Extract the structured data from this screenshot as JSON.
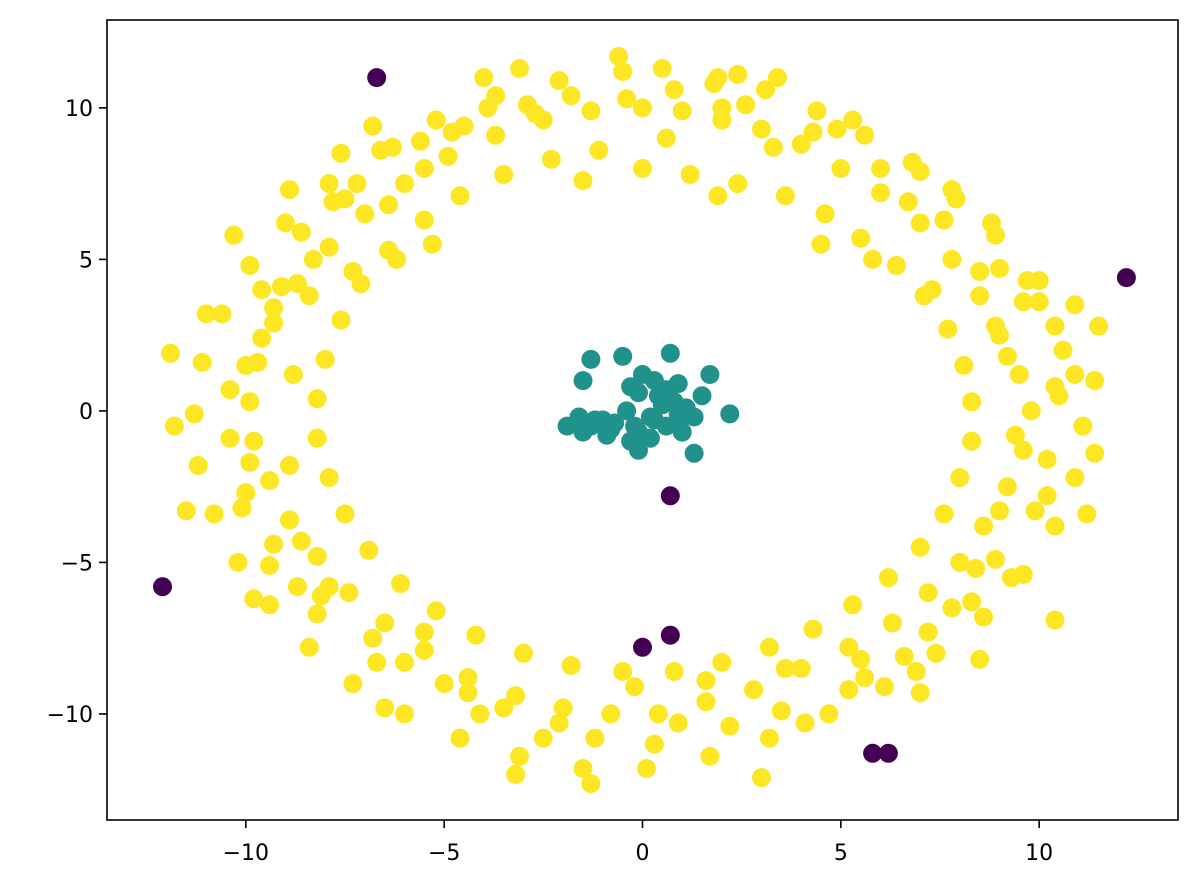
{
  "chart_data": {
    "type": "scatter",
    "title": "",
    "xlabel": "",
    "ylabel": "",
    "xlim": [
      -13.5,
      13.5
    ],
    "ylim": [
      -13.5,
      12.9
    ],
    "grid": false,
    "xticks": [
      -10,
      -5,
      0,
      5,
      10
    ],
    "yticks": [
      -10,
      -5,
      0,
      5,
      10
    ],
    "xtick_labels": [
      "−10",
      "−5",
      "0",
      "5",
      "10"
    ],
    "ytick_labels": [
      "−10",
      "−5",
      "0",
      "5",
      "10"
    ],
    "colors": {
      "outlier": "#440154",
      "center": "#21918c",
      "ring": "#fde725"
    },
    "series": [
      {
        "key": "outlier",
        "points": [
          [
            -6.7,
            11.0
          ],
          [
            12.2,
            4.4
          ],
          [
            -12.1,
            -5.8
          ],
          [
            0.7,
            -2.8
          ],
          [
            0.0,
            -7.8
          ],
          [
            0.7,
            -7.4
          ],
          [
            5.8,
            -11.3
          ],
          [
            6.2,
            -11.3
          ]
        ]
      },
      {
        "key": "center",
        "points": [
          [
            -1.3,
            1.7
          ],
          [
            -0.5,
            1.8
          ],
          [
            0.7,
            1.9
          ],
          [
            1.7,
            1.2
          ],
          [
            -1.5,
            1.0
          ],
          [
            0.0,
            1.2
          ],
          [
            0.3,
            1.0
          ],
          [
            -0.3,
            0.8
          ],
          [
            0.9,
            0.9
          ],
          [
            1.5,
            0.5
          ],
          [
            -0.1,
            0.6
          ],
          [
            0.4,
            0.5
          ],
          [
            0.8,
            0.3
          ],
          [
            2.2,
            -0.1
          ],
          [
            -1.2,
            -0.3
          ],
          [
            -0.7,
            -0.4
          ],
          [
            -0.2,
            -0.5
          ],
          [
            0.3,
            -0.3
          ],
          [
            0.9,
            -0.4
          ],
          [
            1.3,
            -0.2
          ],
          [
            -1.9,
            -0.5
          ],
          [
            -1.5,
            -0.7
          ],
          [
            -0.9,
            -0.8
          ],
          [
            -0.1,
            -0.7
          ],
          [
            0.6,
            -0.5
          ],
          [
            1.0,
            -0.7
          ],
          [
            -1.6,
            -0.2
          ],
          [
            -0.1,
            -1.3
          ],
          [
            1.3,
            -1.4
          ],
          [
            0.2,
            -0.2
          ],
          [
            -0.4,
            0.0
          ],
          [
            1.1,
            0.1
          ],
          [
            0.6,
            0.7
          ],
          [
            -1.0,
            -0.3
          ],
          [
            0.2,
            -0.9
          ],
          [
            -1.3,
            -0.5
          ],
          [
            0.5,
            0.2
          ],
          [
            -0.3,
            -1.0
          ],
          [
            0.9,
            -0.1
          ],
          [
            -0.8,
            -0.6
          ]
        ]
      },
      {
        "key": "ring",
        "points": [
          [
            0.0,
            10.0
          ],
          [
            1.0,
            9.9
          ],
          [
            2.0,
            9.6
          ],
          [
            3.0,
            9.3
          ],
          [
            4.0,
            8.8
          ],
          [
            5.0,
            8.0
          ],
          [
            6.0,
            7.2
          ],
          [
            7.0,
            6.2
          ],
          [
            7.8,
            5.0
          ],
          [
            8.5,
            3.8
          ],
          [
            9.0,
            2.5
          ],
          [
            9.5,
            1.2
          ],
          [
            9.8,
            0.0
          ],
          [
            9.6,
            -1.3
          ],
          [
            9.2,
            -2.5
          ],
          [
            8.6,
            -3.8
          ],
          [
            8.0,
            -5.0
          ],
          [
            7.2,
            -6.0
          ],
          [
            6.3,
            -7.0
          ],
          [
            5.2,
            -7.8
          ],
          [
            4.0,
            -8.5
          ],
          [
            2.8,
            -9.2
          ],
          [
            1.6,
            -9.6
          ],
          [
            0.4,
            -10.0
          ],
          [
            -0.8,
            -10.0
          ],
          [
            -2.0,
            -9.8
          ],
          [
            -3.2,
            -9.4
          ],
          [
            -4.4,
            -8.8
          ],
          [
            -5.5,
            -7.9
          ],
          [
            -6.5,
            -7.0
          ],
          [
            -7.4,
            -6.0
          ],
          [
            -8.2,
            -4.8
          ],
          [
            -8.9,
            -3.6
          ],
          [
            -9.4,
            -2.3
          ],
          [
            -9.8,
            -1.0
          ],
          [
            -9.9,
            0.3
          ],
          [
            -9.7,
            1.6
          ],
          [
            -9.3,
            2.9
          ],
          [
            -8.7,
            4.2
          ],
          [
            -7.9,
            5.4
          ],
          [
            -7.0,
            6.5
          ],
          [
            -6.0,
            7.5
          ],
          [
            -4.9,
            8.4
          ],
          [
            -3.7,
            9.1
          ],
          [
            -2.5,
            9.6
          ],
          [
            -1.3,
            9.9
          ],
          [
            0.5,
            11.3
          ],
          [
            1.8,
            10.8
          ],
          [
            3.1,
            10.6
          ],
          [
            4.4,
            9.9
          ],
          [
            5.6,
            9.1
          ],
          [
            6.8,
            8.2
          ],
          [
            7.9,
            7.0
          ],
          [
            8.9,
            5.8
          ],
          [
            9.7,
            4.3
          ],
          [
            10.4,
            2.8
          ],
          [
            10.9,
            1.2
          ],
          [
            11.1,
            -0.5
          ],
          [
            10.9,
            -2.2
          ],
          [
            10.4,
            -3.8
          ],
          [
            9.6,
            -5.4
          ],
          [
            8.6,
            -6.8
          ],
          [
            7.4,
            -8.0
          ],
          [
            6.1,
            -9.1
          ],
          [
            4.7,
            -10.0
          ],
          [
            3.2,
            -10.8
          ],
          [
            1.7,
            -11.4
          ],
          [
            0.1,
            -11.8
          ],
          [
            -1.5,
            -11.8
          ],
          [
            -3.1,
            -11.4
          ],
          [
            -4.6,
            -10.8
          ],
          [
            -6.0,
            -10.0
          ],
          [
            -7.3,
            -9.0
          ],
          [
            -8.4,
            -7.8
          ],
          [
            -9.4,
            -6.4
          ],
          [
            -10.2,
            -5.0
          ],
          [
            -10.8,
            -3.4
          ],
          [
            -11.2,
            -1.8
          ],
          [
            -11.3,
            -0.1
          ],
          [
            -11.1,
            1.6
          ],
          [
            -10.6,
            3.2
          ],
          [
            -9.9,
            4.8
          ],
          [
            -9.0,
            6.2
          ],
          [
            -7.9,
            7.5
          ],
          [
            -6.6,
            8.6
          ],
          [
            -5.2,
            9.6
          ],
          [
            -3.7,
            10.4
          ],
          [
            -2.1,
            10.9
          ],
          [
            -0.5,
            11.2
          ],
          [
            2.4,
            11.1
          ],
          [
            0.0,
            8.0
          ],
          [
            1.2,
            7.8
          ],
          [
            2.4,
            7.5
          ],
          [
            3.6,
            7.1
          ],
          [
            4.6,
            6.5
          ],
          [
            5.5,
            5.7
          ],
          [
            6.4,
            4.8
          ],
          [
            7.1,
            3.8
          ],
          [
            7.7,
            2.7
          ],
          [
            8.1,
            1.5
          ],
          [
            8.3,
            0.3
          ],
          [
            8.3,
            -1.0
          ],
          [
            8.0,
            -2.2
          ],
          [
            7.6,
            -3.4
          ],
          [
            7.0,
            -4.5
          ],
          [
            6.2,
            -5.5
          ],
          [
            5.3,
            -6.4
          ],
          [
            4.3,
            -7.2
          ],
          [
            3.2,
            -7.8
          ],
          [
            2.0,
            -8.3
          ],
          [
            0.8,
            -8.6
          ],
          [
            -0.5,
            -8.6
          ],
          [
            -1.8,
            -8.4
          ],
          [
            -3.0,
            -8.0
          ],
          [
            -4.2,
            -7.4
          ],
          [
            -5.2,
            -6.6
          ],
          [
            -6.1,
            -5.7
          ],
          [
            -6.9,
            -4.6
          ],
          [
            -7.5,
            -3.4
          ],
          [
            -7.9,
            -2.2
          ],
          [
            -8.2,
            -0.9
          ],
          [
            -8.2,
            0.4
          ],
          [
            -8.0,
            1.7
          ],
          [
            -7.6,
            3.0
          ],
          [
            -7.1,
            4.2
          ],
          [
            -6.4,
            5.3
          ],
          [
            -5.5,
            6.3
          ],
          [
            -4.6,
            7.1
          ],
          [
            -3.5,
            7.8
          ],
          [
            -2.3,
            8.3
          ],
          [
            -1.1,
            8.6
          ],
          [
            0.6,
            9.0
          ],
          [
            3.3,
            8.7
          ],
          [
            6.7,
            6.9
          ],
          [
            9.0,
            4.7
          ],
          [
            10.0,
            3.6
          ],
          [
            10.4,
            0.8
          ],
          [
            9.9,
            -3.3
          ],
          [
            8.3,
            -6.3
          ],
          [
            5.6,
            -8.8
          ],
          [
            2.2,
            -10.4
          ],
          [
            -1.2,
            -10.8
          ],
          [
            -4.1,
            -10.0
          ],
          [
            -6.7,
            -8.3
          ],
          [
            -8.7,
            -5.8
          ],
          [
            -10.0,
            -2.7
          ],
          [
            -10.4,
            0.7
          ],
          [
            -9.6,
            4.0
          ],
          [
            -7.8,
            6.9
          ],
          [
            -5.6,
            8.9
          ],
          [
            -2.9,
            10.1
          ],
          [
            10.9,
            3.5
          ],
          [
            11.5,
            2.8
          ],
          [
            11.4,
            1.0
          ],
          [
            11.4,
            -1.4
          ],
          [
            11.2,
            -3.4
          ],
          [
            10.4,
            -6.9
          ],
          [
            8.5,
            -8.2
          ],
          [
            7.0,
            -9.3
          ],
          [
            3.0,
            -12.1
          ],
          [
            -1.3,
            -12.3
          ],
          [
            -3.2,
            -12.0
          ],
          [
            -6.5,
            -9.8
          ],
          [
            -9.8,
            -6.2
          ],
          [
            -11.5,
            -3.3
          ],
          [
            -11.8,
            -0.5
          ],
          [
            -11.9,
            1.9
          ],
          [
            -11.0,
            3.2
          ],
          [
            -10.3,
            5.8
          ],
          [
            -8.9,
            7.3
          ],
          [
            -7.6,
            8.5
          ],
          [
            -6.8,
            9.4
          ],
          [
            -4.0,
            11.0
          ],
          [
            -3.1,
            11.3
          ],
          [
            -0.6,
            11.7
          ],
          [
            1.9,
            11.0
          ],
          [
            3.4,
            11.0
          ],
          [
            -1.5,
            7.6
          ],
          [
            1.9,
            7.1
          ],
          [
            4.5,
            5.5
          ],
          [
            5.8,
            5.0
          ],
          [
            7.3,
            4.0
          ],
          [
            8.9,
            2.8
          ],
          [
            -6.2,
            5.0
          ],
          [
            -7.3,
            4.6
          ],
          [
            -5.3,
            5.5
          ],
          [
            -8.4,
            3.8
          ],
          [
            -8.8,
            1.2
          ],
          [
            -8.9,
            -1.8
          ],
          [
            -8.6,
            -4.3
          ],
          [
            -7.9,
            -5.8
          ],
          [
            -6.8,
            -7.5
          ],
          [
            -5.0,
            -9.0
          ],
          [
            -3.5,
            -9.8
          ],
          [
            -0.2,
            -9.1
          ],
          [
            1.6,
            -8.9
          ],
          [
            3.6,
            -8.5
          ],
          [
            5.5,
            -8.2
          ],
          [
            7.2,
            -7.3
          ],
          [
            8.4,
            -5.2
          ],
          [
            9.0,
            -3.3
          ],
          [
            9.4,
            -0.8
          ],
          [
            9.2,
            1.8
          ],
          [
            8.5,
            4.6
          ],
          [
            7.6,
            6.3
          ],
          [
            6.0,
            8.0
          ],
          [
            4.3,
            9.2
          ],
          [
            2.6,
            10.1
          ],
          [
            -0.4,
            10.3
          ],
          [
            -2.7,
            9.8
          ],
          [
            -4.5,
            9.4
          ],
          [
            -5.5,
            8.0
          ],
          [
            -6.4,
            6.8
          ],
          [
            -8.3,
            5.0
          ],
          [
            -9.3,
            3.4
          ],
          [
            -10.0,
            1.5
          ],
          [
            -10.4,
            -0.9
          ],
          [
            -10.1,
            -3.2
          ],
          [
            -9.4,
            -5.1
          ],
          [
            -8.2,
            -6.7
          ],
          [
            -6.0,
            -8.3
          ],
          [
            -4.4,
            -9.3
          ],
          [
            -2.1,
            -10.3
          ],
          [
            0.9,
            -10.3
          ],
          [
            3.5,
            -9.9
          ],
          [
            5.2,
            -9.2
          ],
          [
            6.6,
            -8.1
          ],
          [
            7.8,
            -6.5
          ],
          [
            8.9,
            -4.9
          ],
          [
            10.2,
            -1.6
          ],
          [
            10.6,
            2.0
          ],
          [
            10.0,
            4.3
          ],
          [
            8.8,
            6.2
          ],
          [
            7.0,
            7.9
          ],
          [
            4.9,
            9.3
          ],
          [
            2.0,
            10.0
          ],
          [
            -1.8,
            10.4
          ],
          [
            -3.9,
            10.0
          ],
          [
            -6.3,
            8.7
          ],
          [
            -7.5,
            7.0
          ],
          [
            -8.6,
            5.9
          ],
          [
            -9.6,
            2.4
          ],
          [
            -9.9,
            -1.7
          ],
          [
            -9.3,
            -4.4
          ],
          [
            -8.1,
            -6.1
          ],
          [
            -5.5,
            -7.3
          ],
          [
            -2.5,
            -10.8
          ],
          [
            0.3,
            -11.0
          ],
          [
            4.1,
            -10.3
          ],
          [
            6.9,
            -8.6
          ],
          [
            9.3,
            -5.5
          ],
          [
            10.2,
            -2.8
          ],
          [
            10.5,
            0.5
          ],
          [
            9.6,
            3.6
          ],
          [
            7.8,
            7.3
          ],
          [
            5.3,
            9.6
          ],
          [
            0.8,
            10.6
          ],
          [
            -4.8,
            9.2
          ],
          [
            -7.2,
            7.5
          ],
          [
            -9.1,
            4.1
          ]
        ]
      }
    ]
  }
}
